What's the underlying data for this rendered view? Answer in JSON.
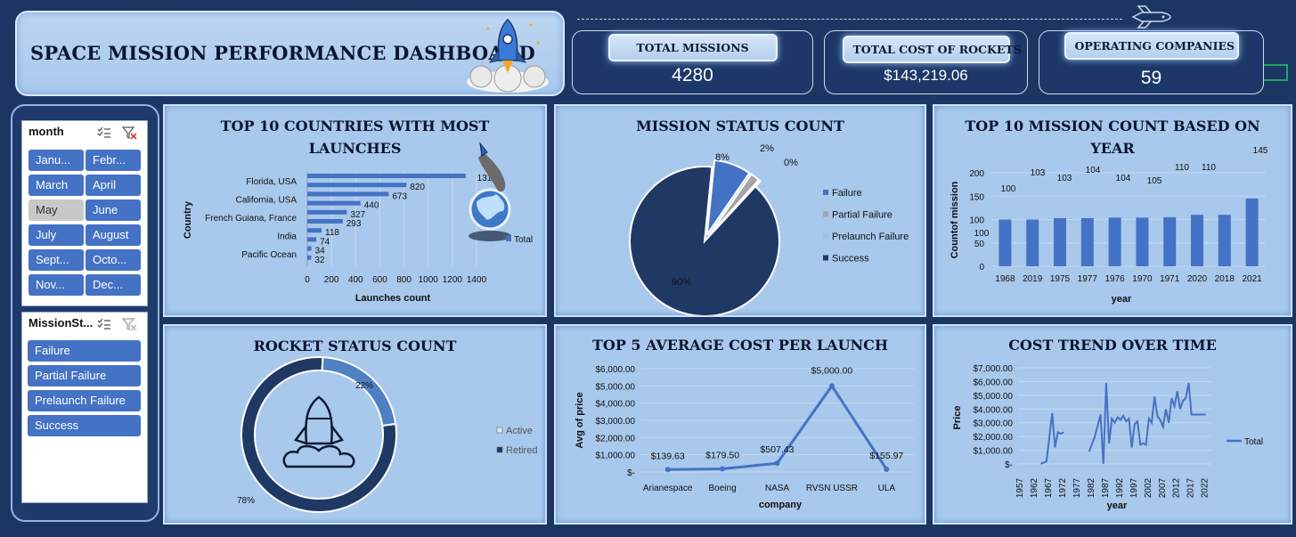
{
  "dashboard": {
    "title": "SPACE MISSION PERFORMANCE DASHBOARD"
  },
  "kpis": {
    "total_missions_label": "TOTAL MISSIONS",
    "total_missions_value": "4280",
    "total_cost_label": "TOTAL COST OF ROCKETS",
    "total_cost_value": "$143,219.06",
    "companies_label": "OPERATING COMPANIES",
    "companies_value": "59"
  },
  "slicers": {
    "month": {
      "title": "month",
      "items": [
        "Janu...",
        "Febr...",
        "March",
        "April",
        "May",
        "June",
        "July",
        "August",
        "Sept...",
        "Octo...",
        "Nov...",
        "Dec..."
      ],
      "selected": "May"
    },
    "mission_status": {
      "title": "MissionSt...",
      "items": [
        "Failure",
        "Partial Failure",
        "Prelaunch Failure",
        "Success"
      ]
    }
  },
  "panels": {
    "countries_title_1": "TOP 10 COUNTRIES WITH MOST",
    "countries_title_2": "LAUNCHES",
    "mission_status_title": "MISSION STATUS COUNT",
    "year_title_1": "TOP 10 MISSION COUNT BASED ON",
    "year_title_2": "YEAR",
    "rocket_status_title": "ROCKET STATUS COUNT",
    "avg_cost_title": "TOP 5 AVERAGE COST PER LAUNCH",
    "cost_trend_title": "COST TREND OVER TIME"
  },
  "colors": {
    "bar": "#4472c4",
    "dark_blue": "#203864",
    "mid_blue": "#2f5597",
    "light_blue": "#9dc3e6",
    "gray": "#a5a5a5",
    "panel_bg": "#a8c8ec"
  },
  "chart_data": [
    {
      "id": "countries",
      "type": "bar",
      "orientation": "horizontal",
      "ylabel": "Country",
      "xlabel": "Launches count",
      "visible_category_labels": [
        "Florida, USA",
        "California, USA",
        "French Guiana, France",
        "India",
        "Pacific Ocean"
      ],
      "values": [
        1310,
        820,
        673,
        440,
        327,
        293,
        118,
        74,
        34,
        32
      ],
      "xlim": [
        0,
        1400
      ],
      "xticks": [
        "0",
        "200",
        "400",
        "600",
        "800",
        "1000",
        "1200",
        "1400"
      ],
      "legend": "Total",
      "legend_position": "right"
    },
    {
      "id": "mission_status",
      "type": "pie",
      "series": [
        {
          "name": "Failure",
          "percent": 8,
          "label": "8%",
          "color": "#4472c4"
        },
        {
          "name": "Partial Failure",
          "percent": 2,
          "label": "2%",
          "color": "#a5a5a5"
        },
        {
          "name": "Prelaunch Failure",
          "percent": 0.3,
          "label": "0%",
          "color": "#9dc3e6"
        },
        {
          "name": "Success",
          "percent": 89.7,
          "label": "90%",
          "color": "#203864"
        }
      ],
      "legend_position": "right"
    },
    {
      "id": "year_count",
      "type": "bar",
      "ylabel": "Countof mission",
      "xlabel": "year",
      "categories": [
        "1968",
        "2019",
        "1975",
        "1977",
        "1976",
        "1970",
        "1971",
        "2020",
        "2018",
        "2021"
      ],
      "values": [
        100,
        100,
        103,
        103,
        104,
        104,
        105,
        110,
        110,
        145
      ],
      "ylim": [
        0,
        200
      ],
      "yticks": [
        "0",
        "50",
        "100",
        "150",
        "200"
      ]
    },
    {
      "id": "rocket_status",
      "type": "pie",
      "variant": "doughnut",
      "series": [
        {
          "name": "Active",
          "percent": 22,
          "label": "22%",
          "color": "#2f5597"
        },
        {
          "name": "Retired",
          "percent": 78,
          "label": "78%",
          "color": "#203864"
        }
      ],
      "legend_position": "right"
    },
    {
      "id": "avg_cost",
      "type": "line",
      "ylabel": "Avg of price",
      "xlabel": "company",
      "categories": [
        "Arianespace",
        "Boeing",
        "NASA",
        "RVSN USSR",
        "ULA"
      ],
      "values": [
        139.63,
        179.5,
        507.43,
        5000,
        155.97
      ],
      "labels": [
        "$139.63",
        "$179.50",
        "$507.43",
        "$5,000.00",
        "$155.97"
      ],
      "ylim": [
        0,
        6000
      ],
      "yticks": [
        "$-",
        "$1,000.00",
        "$2,000.00",
        "$3,000.00",
        "$4,000.00",
        "$5,000.00",
        "$6,000.00"
      ]
    },
    {
      "id": "cost_trend",
      "type": "line",
      "ylabel": "Price",
      "xlabel": "year",
      "legend": "Total",
      "legend_position": "right",
      "ylim": [
        0,
        7000
      ],
      "yticks": [
        "$-",
        "$1,000.00",
        "$2,000.00",
        "$3,000.00",
        "$4,000.00",
        "$5,000.00",
        "$6,000.00",
        "$7,000.00"
      ],
      "xticks": [
        "1957",
        "1962",
        "1967",
        "1972",
        "1977",
        "1982",
        "1987",
        "1992",
        "1997",
        "2002",
        "2007",
        "2012",
        "2017",
        "2022"
      ],
      "segments": [
        {
          "x": [
            1964,
            1966,
            1968,
            1969,
            1970,
            1971,
            1972
          ],
          "y": [
            0,
            200,
            3700,
            1200,
            2300,
            2200,
            2300
          ]
        },
        {
          "x": [
            1981,
            1983,
            1985,
            1986,
            1987,
            1988,
            1989,
            1990,
            1991,
            1992,
            1993,
            1994,
            1995,
            1996,
            1997,
            1998,
            1999,
            2000,
            2001,
            2002,
            2003,
            2004,
            2005,
            2006,
            2007,
            2008,
            2009,
            2010,
            2011,
            2012,
            2013,
            2014,
            2015,
            2016,
            2017,
            2018,
            2019,
            2020,
            2021,
            2022
          ],
          "y": [
            900,
            2000,
            3600,
            0,
            5900,
            1500,
            3300,
            3000,
            3400,
            3200,
            3500,
            3100,
            3300,
            1200,
            2900,
            3100,
            1400,
            1500,
            1400,
            3300,
            3000,
            4900,
            3500,
            3200,
            2700,
            4000,
            3000,
            4800,
            4200,
            5300,
            4000,
            4600,
            4800,
            5900,
            3600,
            3600,
            3600,
            3600,
            3600,
            3600
          ]
        }
      ]
    }
  ]
}
